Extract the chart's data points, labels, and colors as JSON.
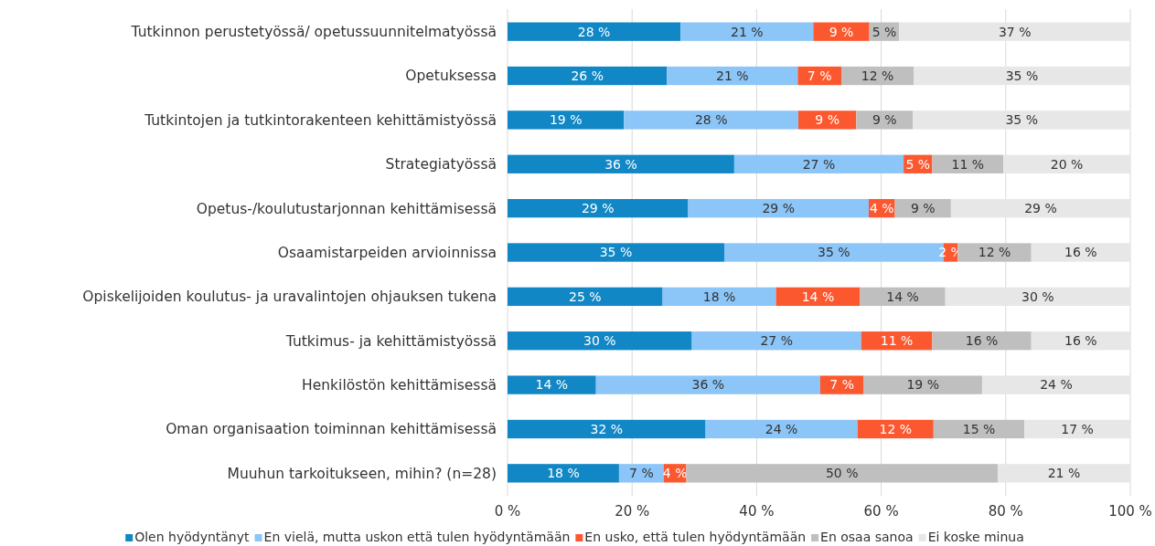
{
  "chart_data": {
    "type": "bar",
    "orientation": "horizontal",
    "stacked": true,
    "categories": [
      "Tutkinnon perustetyössä/ opetussuunnitelmatyössä",
      "Opetuksessa",
      "Tutkintojen ja tutkintorakenteen kehittämistyössä",
      "Strategiatyössä",
      "Opetus-/koulutustarjonnan kehittämisessä",
      "Osaamistarpeiden arvioinnissa",
      "Opiskelijoiden koulutus- ja uravalintojen ohjauksen tukena",
      "Tutkimus- ja kehittämistyössä",
      "Henkilöstön kehittämisessä",
      "Oman organisaation toiminnan kehittämisessä",
      "Muuhun tarkoitukseen, mihin? (n=28)"
    ],
    "series": [
      {
        "name": "Olen hyödyntänyt",
        "color": "#1187c5",
        "values": [
          27.8,
          25.6,
          18.7,
          36.4,
          29.0,
          34.8,
          24.9,
          29.6,
          14.2,
          31.8,
          17.9
        ],
        "value_labels": [
          "28 %",
          "26 %",
          "19 %",
          "36 %",
          "29 %",
          "35 %",
          "25 %",
          "30 %",
          "14 %",
          "32 %",
          "18 %"
        ]
      },
      {
        "name": "En vielä, mutta uskon että tulen hyödyntämään",
        "color": "#8cc5f7",
        "values": [
          21.3,
          21.0,
          28.0,
          27.2,
          29.0,
          35.2,
          18.2,
          27.2,
          36.0,
          24.4,
          7.2
        ],
        "value_labels": [
          "21 %",
          "21 %",
          "28 %",
          "27 %",
          "29 %",
          "35 %",
          "18 %",
          "27 %",
          "36 %",
          "24 %",
          "7 %"
        ]
      },
      {
        "name": "En usko, että tulen hyödyntämään",
        "color": "#fc5830",
        "values": [
          9.0,
          7.0,
          9.3,
          4.6,
          4.2,
          2.3,
          13.5,
          11.4,
          7.0,
          12.2,
          3.6
        ],
        "value_labels": [
          "9 %",
          "7 %",
          "9 %",
          "5 %",
          "4 %",
          "2 %",
          "14 %",
          "11 %",
          "7 %",
          "12 %",
          "4 %"
        ]
      },
      {
        "name": "En osaa sanoa",
        "color": "#bfbfbf",
        "values": [
          4.8,
          11.6,
          9.1,
          11.4,
          9.0,
          11.8,
          13.7,
          15.9,
          19.0,
          14.6,
          50.0
        ],
        "value_labels": [
          "5 %",
          "12 %",
          "9 %",
          "11 %",
          "9 %",
          "12 %",
          "14 %",
          "16 %",
          "19 %",
          "15 %",
          "50 %"
        ]
      },
      {
        "name": "Ei koske minua",
        "color": "#e7e7e7",
        "values": [
          37.1,
          34.8,
          34.9,
          20.4,
          28.8,
          15.9,
          29.7,
          15.9,
          23.8,
          17.0,
          21.3
        ],
        "value_labels": [
          "37 %",
          "35 %",
          "35 %",
          "20 %",
          "29 %",
          "16 %",
          "30 %",
          "16 %",
          "24 %",
          "17 %",
          "21 %"
        ]
      }
    ],
    "xlim": [
      0,
      100
    ],
    "xticks": [
      {
        "value": 0,
        "label": "0 %"
      },
      {
        "value": 20,
        "label": "20 %"
      },
      {
        "value": 40,
        "label": "40 %"
      },
      {
        "value": 60,
        "label": "60 %"
      },
      {
        "value": 80,
        "label": "80 %"
      },
      {
        "value": 100,
        "label": "100 %"
      }
    ],
    "grid": "x",
    "legend": "bottom"
  }
}
